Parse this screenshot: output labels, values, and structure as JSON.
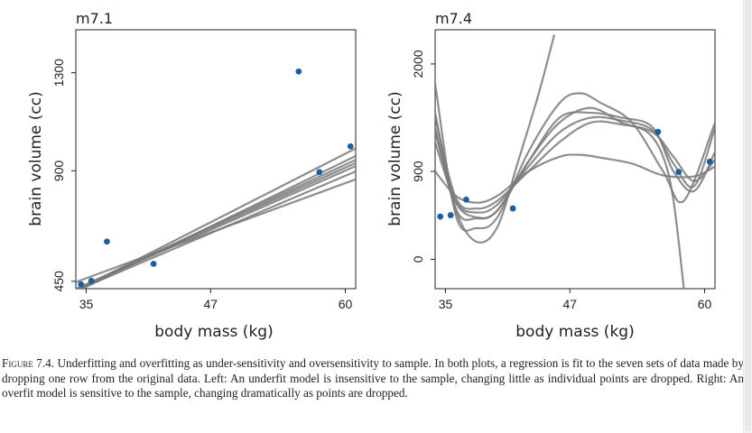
{
  "caption": {
    "figure_label": "Figure 7.4.",
    "text": "Underfitting and overfitting as under-sensitivity and oversensitivity to sample. In both plots, a regression is fit to the seven sets of data made by dropping one row from the original data. Left: An underfit model is insensitive to the sample, changing little as individual points are dropped. Right: An overfit model is sensitive to the sample, changing dramatically as points are dropped."
  },
  "colors": {
    "point": "#1a5fa0",
    "line": "#7a7a7a",
    "frame": "#222222"
  },
  "chart_data": [
    {
      "type": "line",
      "title": "m7.1",
      "xlabel": "body mass (kg)",
      "ylabel": "brain volume (cc)",
      "xlim": [
        34.0,
        61.0
      ],
      "ylim": [
        420,
        1475
      ],
      "xticks": [
        35,
        47,
        60
      ],
      "yticks": [
        450,
        900,
        1300
      ],
      "points": [
        {
          "x": 34.5,
          "y": 438
        },
        {
          "x": 35.5,
          "y": 452
        },
        {
          "x": 37.0,
          "y": 612
        },
        {
          "x": 41.5,
          "y": 521
        },
        {
          "x": 55.5,
          "y": 1305
        },
        {
          "x": 57.5,
          "y": 895
        },
        {
          "x": 60.5,
          "y": 1000
        }
      ],
      "series": [
        {
          "coef": [
            -200,
            18.0
          ]
        },
        {
          "coef": [
            -245,
            19.5
          ]
        },
        {
          "coef": [
            -227,
            19.0
          ]
        },
        {
          "coef": [
            -215,
            18.6
          ]
        },
        {
          "coef": [
            -320,
            21.5
          ]
        },
        {
          "coef": [
            -80,
            15.5
          ]
        },
        {
          "coef": [
            -290,
            20.5
          ]
        }
      ]
    },
    {
      "type": "line",
      "title": "m7.4",
      "xlabel": "body mass (kg)",
      "ylabel": "brain volume (cc)",
      "xlim": [
        34.0,
        61.0
      ],
      "ylim": [
        -300,
        2350
      ],
      "xticks": [
        35,
        47,
        60
      ],
      "yticks": [
        0,
        900,
        2000
      ],
      "points": [
        {
          "x": 34.5,
          "y": 438
        },
        {
          "x": 35.5,
          "y": 452
        },
        {
          "x": 37.0,
          "y": 612
        },
        {
          "x": 41.5,
          "y": 521
        },
        {
          "x": 55.5,
          "y": 1305
        },
        {
          "x": 57.5,
          "y": 895
        },
        {
          "x": 60.5,
          "y": 1000
        }
      ],
      "series": [
        {
          "points": [
            [
              34.0,
              1450
            ],
            [
              36.0,
              630
            ],
            [
              38.0,
              520
            ],
            [
              40.0,
              600
            ],
            [
              43.0,
              900
            ],
            [
              46.0,
              1200
            ],
            [
              49.0,
              1400
            ],
            [
              52.0,
              1380
            ],
            [
              55.0,
              1300
            ],
            [
              57.0,
              1050
            ],
            [
              59.0,
              800
            ],
            [
              61.0,
              1020
            ]
          ]
        },
        {
          "points": [
            [
              34.0,
              1200
            ],
            [
              36.0,
              580
            ],
            [
              38.0,
              430
            ],
            [
              40.0,
              500
            ],
            [
              43.0,
              1000
            ],
            [
              46.0,
              1450
            ],
            [
              49.0,
              1500
            ],
            [
              52.0,
              1450
            ],
            [
              55.0,
              1350
            ],
            [
              57.0,
              900
            ],
            [
              59.0,
              700
            ],
            [
              61.0,
              1100
            ]
          ]
        },
        {
          "points": [
            [
              34.0,
              1800
            ],
            [
              36.0,
              450
            ],
            [
              38.0,
              320
            ],
            [
              40.0,
              430
            ],
            [
              43.0,
              1100
            ],
            [
              46.0,
              1600
            ],
            [
              48.0,
              1700
            ],
            [
              50.0,
              1600
            ],
            [
              53.0,
              1400
            ],
            [
              56.0,
              900
            ],
            [
              58.0,
              600
            ],
            [
              61.0,
              1400
            ]
          ]
        },
        {
          "points": [
            [
              34.0,
              900
            ],
            [
              36.0,
              650
            ],
            [
              38.0,
              580
            ],
            [
              40.0,
              650
            ],
            [
              43.0,
              900
            ],
            [
              46.0,
              1050
            ],
            [
              48.0,
              1070
            ],
            [
              50.0,
              1040
            ],
            [
              53.0,
              980
            ],
            [
              56.0,
              860
            ],
            [
              59.0,
              850
            ],
            [
              61.0,
              950
            ]
          ]
        },
        {
          "points": [
            [
              34.0,
              1350
            ],
            [
              36.0,
              500
            ],
            [
              38.0,
              180
            ],
            [
              40.0,
              330
            ],
            [
              42.0,
              1000
            ],
            [
              44.0,
              1700
            ],
            [
              45.5,
              2300
            ]
          ]
        },
        {
          "points": [
            [
              34.0,
              1500
            ],
            [
              36.0,
              520
            ],
            [
              38.0,
              420
            ],
            [
              40.0,
              500
            ],
            [
              43.0,
              1000
            ],
            [
              46.0,
              1400
            ],
            [
              49.0,
              1550
            ],
            [
              52.0,
              1400
            ],
            [
              54.5,
              1300
            ],
            [
              56.0,
              1050
            ],
            [
              57.0,
              600
            ],
            [
              58.0,
              -300
            ]
          ]
        },
        {
          "points": [
            [
              34.0,
              1300
            ],
            [
              36.0,
              600
            ],
            [
              38.0,
              480
            ],
            [
              40.0,
              560
            ],
            [
              43.0,
              950
            ],
            [
              46.0,
              1300
            ],
            [
              49.0,
              1450
            ],
            [
              52.0,
              1420
            ],
            [
              55.0,
              1320
            ],
            [
              57.0,
              980
            ],
            [
              59.0,
              750
            ],
            [
              61.0,
              1350
            ]
          ]
        }
      ]
    }
  ]
}
